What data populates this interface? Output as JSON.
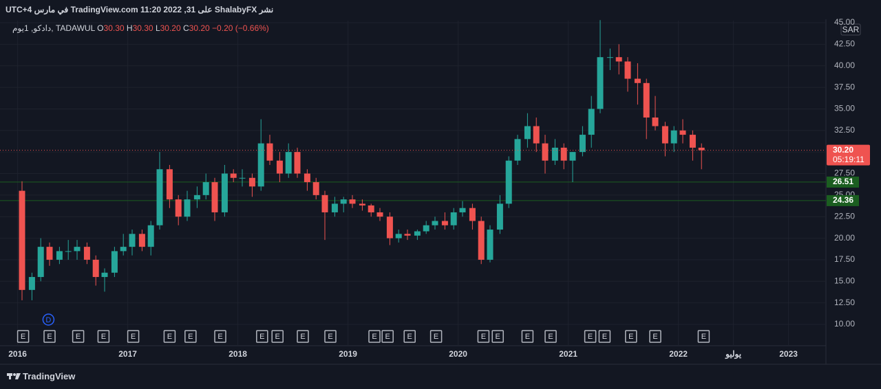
{
  "header": "نشر ShalabyFX على TradingView.com 11:20 2022 ,31 في مارس UTC+4",
  "footer": "TradingView",
  "chart_data": {
    "type": "candlestick",
    "symbol": "دادكو, 1يوم, TADAWUL",
    "legend_keys": [
      "O",
      "H",
      "L",
      "C"
    ],
    "legend_values": [
      30.3,
      30.3,
      30.2,
      30.2,
      -0.2,
      -0.66
    ],
    "legend_value_labels": [
      "30.30",
      "30.30",
      "30.20",
      "30.20",
      "−0.20",
      "(−0.66%)"
    ],
    "currency": "SAR",
    "up_color": "#26a69a",
    "down_color": "#ef5350",
    "xlim": [
      2015.84,
      2023.34
    ],
    "xticks": [
      2016,
      2017,
      2018,
      2019,
      2020,
      2021,
      2022,
      {
        "value": 2022.5,
        "label": "يوليو"
      },
      2023
    ],
    "ylim": [
      7.53,
      45.24
    ],
    "yticks": [
      {
        "value": 10,
        "label": "10.00"
      },
      {
        "value": 12.5,
        "label": "12.50"
      },
      {
        "value": 15,
        "label": "15.00"
      },
      {
        "value": 17.5,
        "label": "17.50"
      },
      {
        "value": 20,
        "label": "20.00"
      },
      {
        "value": 22.5,
        "label": "22.50"
      },
      {
        "value": 25,
        "label": "25.00"
      },
      {
        "value": 27.5,
        "label": "27.50"
      },
      {
        "value": 30,
        "label": "30.00"
      },
      {
        "value": 32.5,
        "label": "32.50"
      },
      {
        "value": 35,
        "label": "35.00"
      },
      {
        "value": 37.5,
        "label": "37.50"
      },
      {
        "value": 40,
        "label": "40.00"
      },
      {
        "value": 42.5,
        "label": "42.50"
      },
      {
        "value": 45,
        "label": "45.00"
      }
    ],
    "grid": true,
    "x": [
      2016.04,
      2016.13,
      2016.21,
      2016.29,
      2016.38,
      2016.46,
      2016.54,
      2016.63,
      2016.71,
      2016.79,
      2016.88,
      2016.96,
      2017.04,
      2017.13,
      2017.21,
      2017.29,
      2017.38,
      2017.46,
      2017.54,
      2017.63,
      2017.71,
      2017.79,
      2017.88,
      2017.96,
      2018.04,
      2018.13,
      2018.21,
      2018.29,
      2018.38,
      2018.46,
      2018.54,
      2018.63,
      2018.71,
      2018.79,
      2018.88,
      2018.96,
      2019.04,
      2019.13,
      2019.21,
      2019.29,
      2019.38,
      2019.46,
      2019.54,
      2019.63,
      2019.71,
      2019.79,
      2019.88,
      2019.96,
      2020.04,
      2020.13,
      2020.21,
      2020.29,
      2020.38,
      2020.46,
      2020.54,
      2020.63,
      2020.71,
      2020.79,
      2020.88,
      2020.96,
      2021.04,
      2021.13,
      2021.21,
      2021.29,
      2021.38,
      2021.46,
      2021.54,
      2021.63,
      2021.71,
      2021.79,
      2021.88,
      2021.96,
      2022.04,
      2022.13,
      2022.21
    ],
    "open": [
      25.5,
      14,
      15.5,
      19,
      17.5,
      18.5,
      18.5,
      19,
      17.5,
      15.5,
      16,
      18.5,
      19,
      20.5,
      19,
      21.5,
      28,
      24.5,
      22.5,
      24.5,
      25,
      26.5,
      23,
      27.5,
      27,
      27,
      26,
      31,
      29,
      27.5,
      30,
      27.5,
      26.5,
      25,
      23,
      24,
      24.5,
      24,
      23.8,
      23,
      22.5,
      20,
      20.5,
      20.3,
      20.8,
      21.5,
      22,
      21.5,
      23,
      23.5,
      22,
      17.5,
      21,
      24,
      29,
      31.5,
      33,
      31,
      29,
      30.5,
      29,
      30,
      32,
      35,
      41,
      41,
      40.5,
      38.5,
      38,
      34,
      33,
      31,
      32.5,
      32,
      30.5
    ],
    "high": [
      26.6,
      16,
      20,
      19.5,
      19,
      19.8,
      19.8,
      19.5,
      18,
      16.5,
      19,
      20.5,
      21,
      21,
      22,
      30,
      28.5,
      25,
      25.5,
      26,
      27.5,
      27,
      28.5,
      28,
      28,
      27.5,
      33.8,
      32,
      30,
      31,
      30.5,
      28,
      27,
      25.5,
      24.8,
      24.8,
      25,
      24.5,
      24,
      23.5,
      23,
      21,
      21,
      21,
      22,
      22.5,
      23,
      23.5,
      24.3,
      24,
      22.5,
      21.5,
      25,
      29.5,
      32,
      34.5,
      34,
      32,
      31.5,
      31,
      30,
      33,
      36.5,
      45.3,
      42,
      42.5,
      41,
      40.3,
      38.5,
      36.5,
      33.5,
      33,
      33.8,
      32.5,
      31
    ],
    "low": [
      12.8,
      12.8,
      15,
      16.8,
      17,
      17.5,
      17.5,
      17,
      14.5,
      13.8,
      15.5,
      18,
      18,
      18.5,
      18,
      21,
      23.5,
      21.5,
      22,
      23.5,
      24.5,
      22,
      22.5,
      26.5,
      26,
      24.8,
      25.5,
      28.5,
      26.5,
      27,
      27,
      25.5,
      24.5,
      19.8,
      22.5,
      23,
      23.5,
      23.2,
      22.5,
      22,
      19.2,
      19.5,
      19.8,
      19.8,
      20.5,
      21,
      21,
      21,
      22.5,
      21,
      17,
      17.2,
      20.5,
      23.5,
      28.5,
      30.5,
      30,
      27.5,
      28.5,
      28,
      26.5,
      29.5,
      30.5,
      34.5,
      39.5,
      39,
      37,
      35.5,
      31.5,
      32.5,
      29.5,
      30,
      31,
      29,
      28
    ],
    "close": [
      14,
      15.5,
      19,
      17.5,
      18.5,
      18.5,
      19,
      17.5,
      15.5,
      16,
      18.5,
      19,
      20.5,
      19,
      21.5,
      28,
      24.5,
      22.5,
      24.5,
      25,
      26.5,
      23,
      27.5,
      27,
      27,
      26,
      31,
      29,
      27.5,
      30,
      27.5,
      26.5,
      25,
      23,
      24,
      24.5,
      24,
      23.8,
      23,
      22.5,
      20,
      20.5,
      20.3,
      20.8,
      21.5,
      22,
      21.5,
      23,
      23.5,
      22,
      17.5,
      21,
      24,
      29,
      31.5,
      33,
      31,
      29,
      30.5,
      29,
      30,
      32,
      35,
      41,
      41,
      40.5,
      38.5,
      38,
      34,
      33,
      31,
      32.5,
      32,
      30.5,
      30.2
    ],
    "price_lines": [
      {
        "value": 26.51,
        "label": "26.51",
        "color": "#1b5e20"
      },
      {
        "value": 24.36,
        "label": "24.36",
        "color": "#1b5e20"
      }
    ],
    "last_price": {
      "value": 30.2,
      "label": "30.20",
      "countdown": "05:19:11",
      "color": "#ef5350"
    },
    "dividend": {
      "label": "D",
      "x": 2016.28
    },
    "earnings": {
      "label": "E",
      "x": [
        2016.05,
        2016.29,
        2016.55,
        2016.78,
        2017.05,
        2017.38,
        2017.57,
        2017.84,
        2018.22,
        2018.36,
        2018.59,
        2018.84,
        2019.24,
        2019.36,
        2019.56,
        2019.8,
        2020.23,
        2020.36,
        2020.63,
        2020.84,
        2021.2,
        2021.33,
        2021.57,
        2021.79,
        2022.23
      ]
    }
  }
}
